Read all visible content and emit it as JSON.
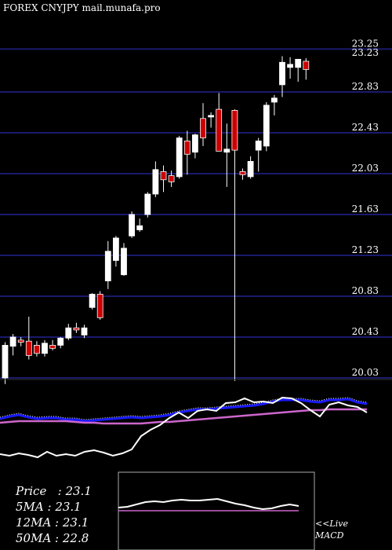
{
  "header": {
    "title": "FOREX  CNYJPY mail.munafa.pro"
  },
  "legend": {
    "price": "Price   : 23.1",
    "ma5": "5MA : 23.1",
    "ma12": "12MA : 23.1",
    "ma50": "50MA : 22.8"
  },
  "macd_panel": {
    "live_label": "<<Live",
    "macd_label": "MACD"
  },
  "colors": {
    "background": "#000000",
    "up": "#ffffff",
    "down": "#cc0000",
    "grid": "#1a1a6e",
    "ma_short": "#1a1aff",
    "ma_long": "#cc66cc"
  },
  "chart_data": [
    {
      "type": "candlestick",
      "title": "FOREX  CNYJPY mail.munafa.pro",
      "ylim": [
        19.95,
        23.35
      ],
      "price_labels": [
        "23.25",
        "23.23",
        "22.83",
        "22.43",
        "22.03",
        "21.63",
        "21.23",
        "20.83",
        "20.43",
        "20.03"
      ],
      "candles": [
        {
          "o": 20.03,
          "h": 20.38,
          "l": 19.97,
          "c": 20.35
        },
        {
          "o": 20.34,
          "h": 20.46,
          "l": 20.25,
          "c": 20.43
        },
        {
          "o": 20.4,
          "h": 20.43,
          "l": 20.34,
          "c": 20.38
        },
        {
          "o": 20.39,
          "h": 20.63,
          "l": 20.21,
          "c": 20.25
        },
        {
          "o": 20.35,
          "h": 20.39,
          "l": 20.24,
          "c": 20.27
        },
        {
          "o": 20.27,
          "h": 20.4,
          "l": 20.24,
          "c": 20.37
        },
        {
          "o": 20.35,
          "h": 20.4,
          "l": 20.3,
          "c": 20.32
        },
        {
          "o": 20.35,
          "h": 20.43,
          "l": 20.32,
          "c": 20.42
        },
        {
          "o": 20.42,
          "h": 20.56,
          "l": 20.4,
          "c": 20.52
        },
        {
          "o": 20.52,
          "h": 20.57,
          "l": 20.47,
          "c": 20.5
        },
        {
          "o": 20.45,
          "h": 20.55,
          "l": 20.42,
          "c": 20.52
        },
        {
          "o": 20.72,
          "h": 20.86,
          "l": 20.7,
          "c": 20.85
        },
        {
          "o": 20.85,
          "h": 20.88,
          "l": 20.6,
          "c": 20.62
        },
        {
          "o": 20.98,
          "h": 21.37,
          "l": 20.9,
          "c": 21.27
        },
        {
          "o": 21.18,
          "h": 21.42,
          "l": 21.12,
          "c": 21.4
        },
        {
          "o": 21.04,
          "h": 21.35,
          "l": 21.03,
          "c": 21.3
        },
        {
          "o": 21.42,
          "h": 21.66,
          "l": 21.4,
          "c": 21.63
        },
        {
          "o": 21.48,
          "h": 21.59,
          "l": 21.46,
          "c": 21.52
        },
        {
          "o": 21.63,
          "h": 21.85,
          "l": 21.6,
          "c": 21.83
        },
        {
          "o": 21.83,
          "h": 22.15,
          "l": 21.8,
          "c": 22.07
        },
        {
          "o": 22.05,
          "h": 22.11,
          "l": 21.85,
          "c": 21.97
        },
        {
          "o": 22.01,
          "h": 22.06,
          "l": 21.9,
          "c": 21.95
        },
        {
          "o": 22.0,
          "h": 22.4,
          "l": 21.98,
          "c": 22.38
        },
        {
          "o": 22.35,
          "h": 22.45,
          "l": 22.02,
          "c": 22.22
        },
        {
          "o": 22.24,
          "h": 22.42,
          "l": 22.18,
          "c": 22.41
        },
        {
          "o": 22.57,
          "h": 22.72,
          "l": 22.3,
          "c": 22.38
        },
        {
          "o": 22.6,
          "h": 22.63,
          "l": 22.48,
          "c": 22.6
        },
        {
          "o": 22.66,
          "h": 22.82,
          "l": 22.25,
          "c": 22.25
        },
        {
          "o": 22.24,
          "h": 22.52,
          "l": 21.9,
          "c": 22.27
        },
        {
          "o": 22.65,
          "h": 22.66,
          "l": 20.0,
          "c": 22.26
        },
        {
          "o": 22.05,
          "h": 22.08,
          "l": 21.97,
          "c": 22.02
        },
        {
          "o": 22.0,
          "h": 22.2,
          "l": 21.98,
          "c": 22.15
        },
        {
          "o": 22.26,
          "h": 22.38,
          "l": 22.05,
          "c": 22.35
        },
        {
          "o": 22.3,
          "h": 22.73,
          "l": 22.25,
          "c": 22.7
        },
        {
          "o": 22.73,
          "h": 22.8,
          "l": 22.6,
          "c": 22.77
        },
        {
          "o": 22.9,
          "h": 23.18,
          "l": 22.78,
          "c": 23.12
        },
        {
          "o": 23.07,
          "h": 23.17,
          "l": 22.96,
          "c": 23.1
        },
        {
          "o": 23.07,
          "h": 23.15,
          "l": 22.93,
          "c": 23.15
        },
        {
          "o": 23.13,
          "h": 23.16,
          "l": 22.95,
          "c": 23.05
        }
      ]
    },
    {
      "type": "line",
      "series": [
        {
          "values": [
            9,
            12,
            14,
            11,
            9,
            10,
            10,
            8,
            8,
            6,
            7,
            8,
            9,
            10,
            11,
            10,
            11,
            12,
            14,
            17,
            19,
            21,
            21,
            22,
            23,
            24,
            25,
            26,
            28,
            31,
            33,
            33,
            33,
            31,
            30,
            33,
            33,
            34,
            30,
            28
          ]
        },
        {
          "values": [
            4,
            5,
            6,
            6,
            6,
            6,
            6,
            6,
            5,
            4,
            4,
            3,
            3,
            3,
            3,
            3,
            4,
            5,
            5,
            6,
            7,
            8,
            9,
            10,
            11,
            12,
            13,
            14,
            15,
            16,
            17,
            18,
            19,
            20,
            20,
            21,
            21,
            21,
            21,
            21
          ]
        },
        {
          "values": [
            -36,
            -38,
            -35,
            -37,
            -40,
            -33,
            -38,
            -36,
            -38,
            -33,
            -31,
            -34,
            -38,
            -35,
            -30,
            -13,
            -5,
            1,
            10,
            17,
            10,
            19,
            21,
            19,
            29,
            30,
            35,
            30,
            31,
            29,
            36,
            35,
            29,
            20,
            12,
            27,
            30,
            26,
            24,
            17
          ]
        }
      ]
    },
    {
      "type": "line",
      "title": "MACD",
      "series": [
        {
          "values": [
            4,
            5,
            8,
            11,
            12,
            11,
            13,
            14,
            13,
            13,
            14,
            15,
            12,
            9,
            7,
            4,
            2,
            3,
            6,
            8,
            6
          ]
        },
        {
          "values": [
            0,
            0,
            0,
            0,
            0,
            0,
            0,
            0,
            0,
            0,
            0,
            0,
            0,
            0,
            0,
            0,
            0,
            0,
            0,
            0,
            0
          ]
        }
      ]
    }
  ]
}
